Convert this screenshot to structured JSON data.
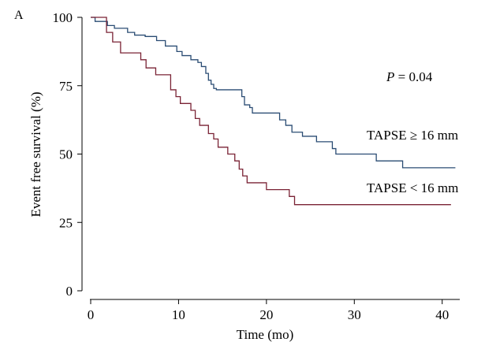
{
  "chart_data": {
    "type": "line",
    "subtype": "kaplan-meier-step",
    "panel_label": "A",
    "xlabel": "Time (mo)",
    "ylabel": "Event free survival (%)",
    "xlim": [
      0,
      42
    ],
    "ylim": [
      0,
      100
    ],
    "xticks": [
      0,
      10,
      20,
      30,
      40
    ],
    "yticks": [
      0,
      25,
      50,
      75,
      100
    ],
    "grid": false,
    "legend": "none",
    "annotation": {
      "italic": "P",
      "text": " = 0.04"
    },
    "series": [
      {
        "name": "TAPSE ≥ 16 mm",
        "color": "#2a4c73",
        "x": [
          0,
          0.5,
          1.9,
          2.7,
          4.2,
          5,
          6.2,
          7.5,
          8.5,
          9.8,
          10.4,
          11.4,
          12.2,
          12.6,
          13.1,
          13.4,
          13.7,
          14,
          14.3,
          15.5,
          17.2,
          17.5,
          18.1,
          18.4,
          19.1,
          21.5,
          22.2,
          22.9,
          24.1,
          25.7,
          27.5,
          27.9,
          32.5,
          35.5,
          41.5
        ],
        "y": [
          100,
          98.5,
          97,
          96,
          94.5,
          93.5,
          93,
          91.5,
          89.5,
          87.5,
          86,
          84.5,
          83.5,
          82,
          79.5,
          77,
          75.5,
          74,
          73.5,
          73.5,
          71,
          68,
          67,
          65,
          65,
          62.5,
          60.5,
          58,
          56.5,
          54.5,
          52,
          50,
          47.5,
          45,
          45
        ]
      },
      {
        "name": "TAPSE < 16 mm",
        "color": "#7a2335",
        "x": [
          0,
          1.8,
          2.5,
          3.4,
          5.7,
          6.3,
          7.4,
          9.1,
          9.7,
          10.2,
          11.4,
          11.9,
          12.4,
          13.4,
          14,
          14.5,
          15.6,
          16.4,
          16.9,
          17.3,
          17.8,
          20,
          22.6,
          23.2,
          41
        ],
        "y": [
          100,
          94.5,
          91,
          87,
          84.5,
          81.5,
          79,
          73.5,
          71,
          68.5,
          66,
          63,
          60.5,
          57.5,
          55.5,
          52.5,
          50,
          47.5,
          44.5,
          42,
          39.5,
          37,
          34.5,
          31.5,
          31.5
        ]
      }
    ]
  }
}
